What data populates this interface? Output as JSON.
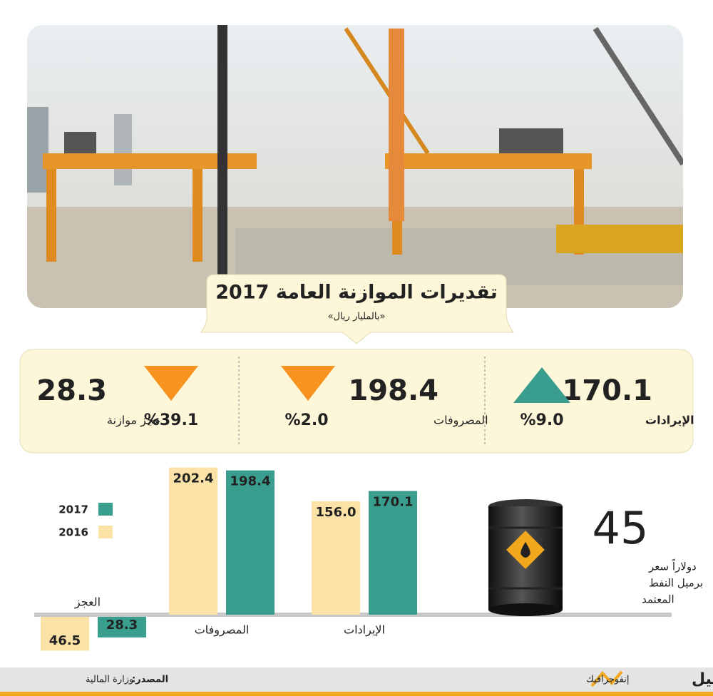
{
  "header": {
    "title": "تقديرات الموازنة العامة 2017",
    "subtitle": "«بالمليار ريال»"
  },
  "kpis": [
    {
      "value": "170.1",
      "label": "الإيرادات",
      "change": "%9.0",
      "direction": "up",
      "color": "#3a9e8e"
    },
    {
      "value": "198.4",
      "label": "المصروفات",
      "change": "%2.0",
      "direction": "down",
      "color": "#f7931e"
    },
    {
      "value": "28.3",
      "label": "عجز موازنة",
      "change": "%39.1",
      "direction": "down",
      "color": "#f7931e"
    }
  ],
  "chart_data": {
    "type": "bar",
    "categories": [
      "الإيرادات",
      "المصروفات",
      "العجز"
    ],
    "series": [
      {
        "name": "2017",
        "color": "#3a9e8e",
        "values": [
          170.1,
          198.4,
          -28.3
        ],
        "value_labels": [
          "170.1",
          "198.4",
          "28.3"
        ]
      },
      {
        "name": "2016",
        "color": "#fbe3a8",
        "values": [
          156.0,
          202.4,
          -46.5
        ],
        "value_labels": [
          "156.0",
          "202.4",
          "46.5"
        ]
      }
    ]
  },
  "oil": {
    "price": "45",
    "lines": [
      "دولاراً سعر",
      "برميل النفط",
      "المعتمد"
    ]
  },
  "footer": {
    "source_label": "المصدر:",
    "source": "وزارة المالية",
    "brand": "لوسيل",
    "section": "إنفوجرافيك"
  }
}
